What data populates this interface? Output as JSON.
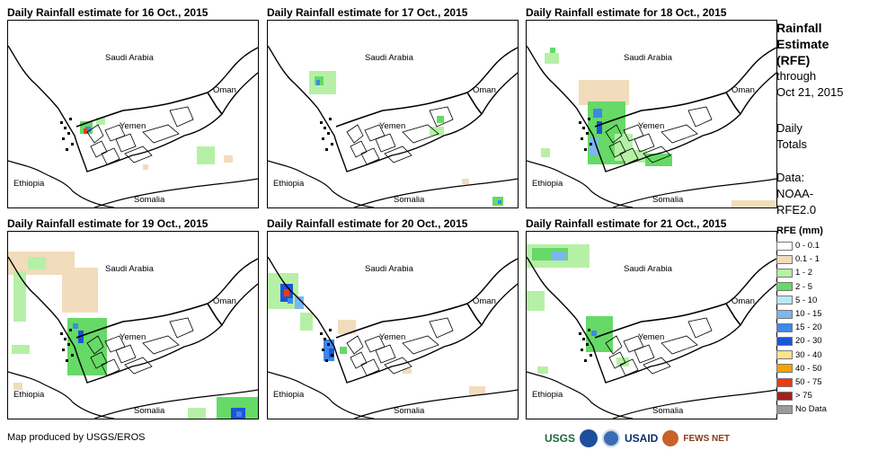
{
  "panels": [
    {
      "title": "Daily Rainfall estimate for 16 Oct., 2015"
    },
    {
      "title": "Daily Rainfall estimate for 17 Oct., 2015"
    },
    {
      "title": "Daily Rainfall estimate for 18 Oct., 2015"
    },
    {
      "title": "Daily Rainfall estimate for 19 Oct., 2015"
    },
    {
      "title": "Daily Rainfall estimate for 20 Oct., 2015"
    },
    {
      "title": "Daily Rainfall estimate for 21 Oct., 2015"
    }
  ],
  "places": {
    "saudi_arabia": "Saudi Arabia",
    "oman": "Oman",
    "yemen": "Yemen",
    "ethiopia": "Ethiopia",
    "somalia": "Somalia"
  },
  "side_panel": {
    "title_lines": [
      "Rainfall",
      "Estimate",
      "(RFE)"
    ],
    "through": "through",
    "date": "Oct 21, 2015",
    "daily": "Daily",
    "totals": "Totals",
    "data": "Data:",
    "source1": "NOAA-",
    "source2": "RFE2.0"
  },
  "legend": {
    "title": "RFE (mm)",
    "items": [
      {
        "label": "0 - 0.1",
        "color": "#ffffff"
      },
      {
        "label": "0.1 - 1",
        "color": "#f1dcbc"
      },
      {
        "label": "1 - 2",
        "color": "#b6f0a6"
      },
      {
        "label": "2 - 5",
        "color": "#66d966"
      },
      {
        "label": "5 - 10",
        "color": "#b9e8f7"
      },
      {
        "label": "10 - 15",
        "color": "#7db6ee"
      },
      {
        "label": "15 - 20",
        "color": "#3d88e8"
      },
      {
        "label": "20 - 30",
        "color": "#1a55d8"
      },
      {
        "label": "30 - 40",
        "color": "#fde38c"
      },
      {
        "label": "40 - 50",
        "color": "#f5a400"
      },
      {
        "label": "50 - 75",
        "color": "#ee3a13"
      },
      {
        "label": "> 75",
        "color": "#a31f1f"
      },
      {
        "label": "No Data",
        "color": "#9a9a9a"
      }
    ]
  },
  "footer": "Map produced by USGS/EROS",
  "logos": {
    "usgs": "USGS",
    "usaid": "USAID",
    "fewsnet": "FEWS NET"
  }
}
